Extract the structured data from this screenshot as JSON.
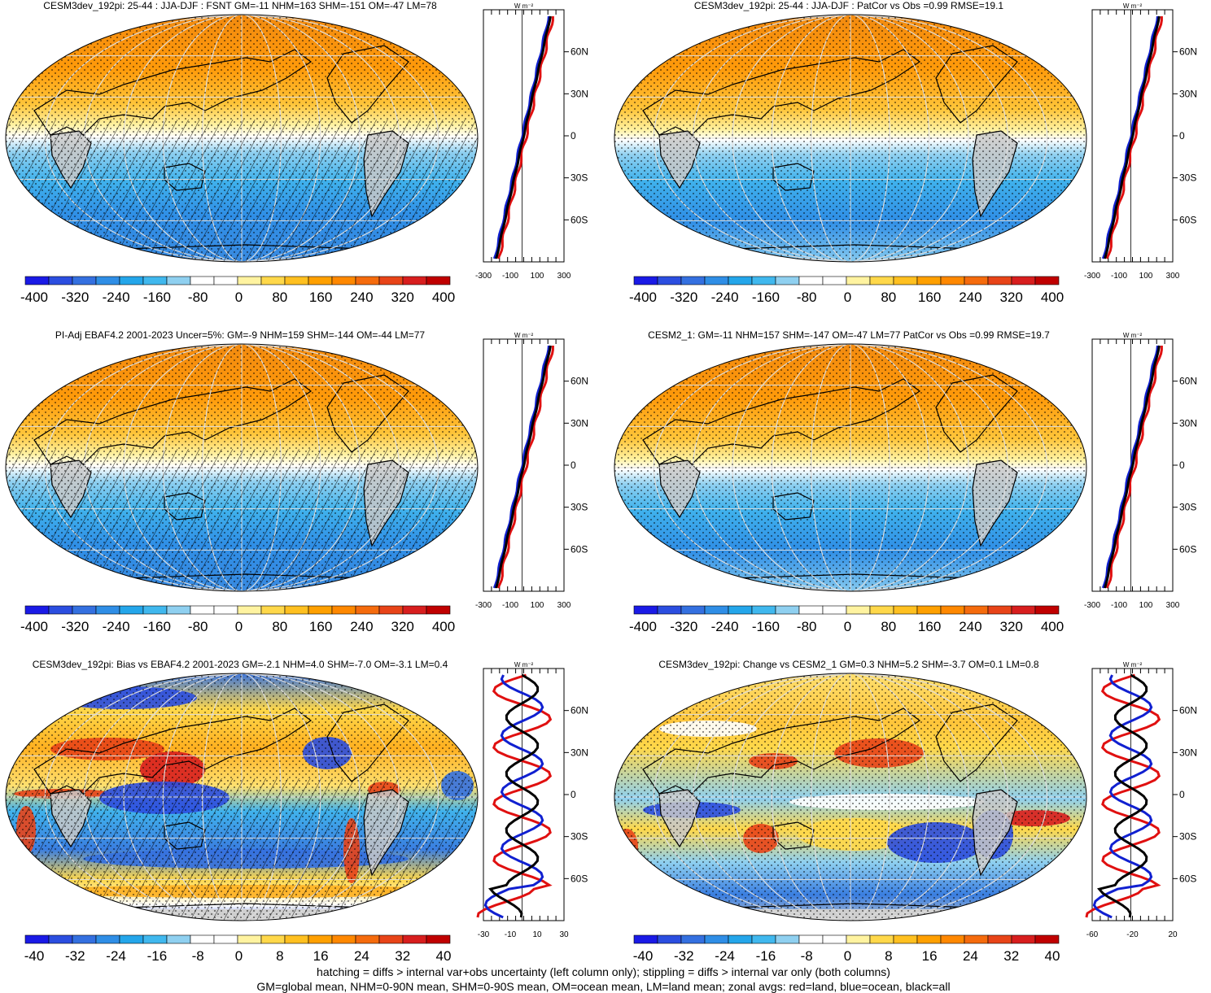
{
  "panels": [
    {
      "title": "CESM3dev_192pi: 25-44 : JJA-DJF : FSNT GM=-11 NHM=163 SHM=-151 OM=-47 LM=78",
      "cbar_labels": [
        "-400",
        "-320",
        "-240",
        "-160",
        "-80",
        "0",
        "80",
        "160",
        "240",
        "320",
        "400"
      ],
      "zonal_ticks": [
        "-300",
        "-100",
        "100",
        "300"
      ],
      "hatch": true,
      "diff": false
    },
    {
      "title": "CESM3dev_192pi: 25-44 : JJA-DJF : PatCor vs Obs =0.99 RMSE=19.1",
      "cbar_labels": [
        "-400",
        "-320",
        "-240",
        "-160",
        "-80",
        "0",
        "80",
        "160",
        "240",
        "320",
        "400"
      ],
      "zonal_ticks": [
        "-300",
        "-100",
        "100",
        "300"
      ],
      "hatch": false,
      "diff": false
    },
    {
      "title": "PI-Adj EBAF4.2 2001-2023 Uncer=5%: GM=-9 NHM=159 SHM=-144 OM=-44 LM=77",
      "cbar_labels": [
        "-400",
        "-320",
        "-240",
        "-160",
        "-80",
        "0",
        "80",
        "160",
        "240",
        "320",
        "400"
      ],
      "zonal_ticks": [
        "-300",
        "-100",
        "100",
        "300"
      ],
      "hatch": true,
      "diff": false
    },
    {
      "title": "CESM2_1: GM=-11 NHM=157 SHM=-147 OM=-47 LM=77 PatCor vs Obs =0.99 RMSE=19.7",
      "cbar_labels": [
        "-400",
        "-320",
        "-240",
        "-160",
        "-80",
        "0",
        "80",
        "160",
        "240",
        "320",
        "400"
      ],
      "zonal_ticks": [
        "-300",
        "-100",
        "100",
        "300"
      ],
      "hatch": false,
      "diff": false
    },
    {
      "title": "CESM3dev_192pi: Bias vs EBAF4.2 2001-2023 GM=-2.1 NHM=4.0 SHM=-7.0 OM=-3.1 LM=0.4",
      "cbar_labels": [
        "-40",
        "-32",
        "-24",
        "-16",
        "-8",
        "0",
        "8",
        "16",
        "24",
        "32",
        "40"
      ],
      "zonal_ticks": [
        "-30",
        "-10",
        "10",
        "30"
      ],
      "hatch": true,
      "diff": true
    },
    {
      "title": "CESM3dev_192pi: Change vs CESM2_1 GM=0.3 NHM=5.2 SHM=-3.7 OM=0.1 LM=0.8",
      "cbar_labels": [
        "-40",
        "-32",
        "-24",
        "-16",
        "-8",
        "0",
        "8",
        "16",
        "24",
        "32",
        "40"
      ],
      "zonal_ticks": [
        "-60",
        "-20",
        "20"
      ],
      "hatch": false,
      "diff": true
    }
  ],
  "lat_labels": [
    "60N",
    "30N",
    "0",
    "30S",
    "60S"
  ],
  "units": "W m⁻²",
  "colors": [
    "#1a1ae6",
    "#2b4ee0",
    "#3470e0",
    "#2f8ee6",
    "#24a6ea",
    "#40b8ee",
    "#8fd0f0",
    "#ffffff",
    "#ffffff",
    "#fff3a0",
    "#ffd84a",
    "#ffc020",
    "#ffa000",
    "#ff8800",
    "#f56b0d",
    "#e84418",
    "#d81e1e",
    "#c00000"
  ],
  "footer": {
    "line1": "hatching = diffs > internal var+obs uncertainty (left column only); stippling = diffs > internal var only (both columns)",
    "line2": "GM=global mean, NHM=0-90N mean, SHM=0-90S mean, OM=ocean mean, LM=land mean; zonal avgs: red=land, blue=ocean, black=all"
  }
}
